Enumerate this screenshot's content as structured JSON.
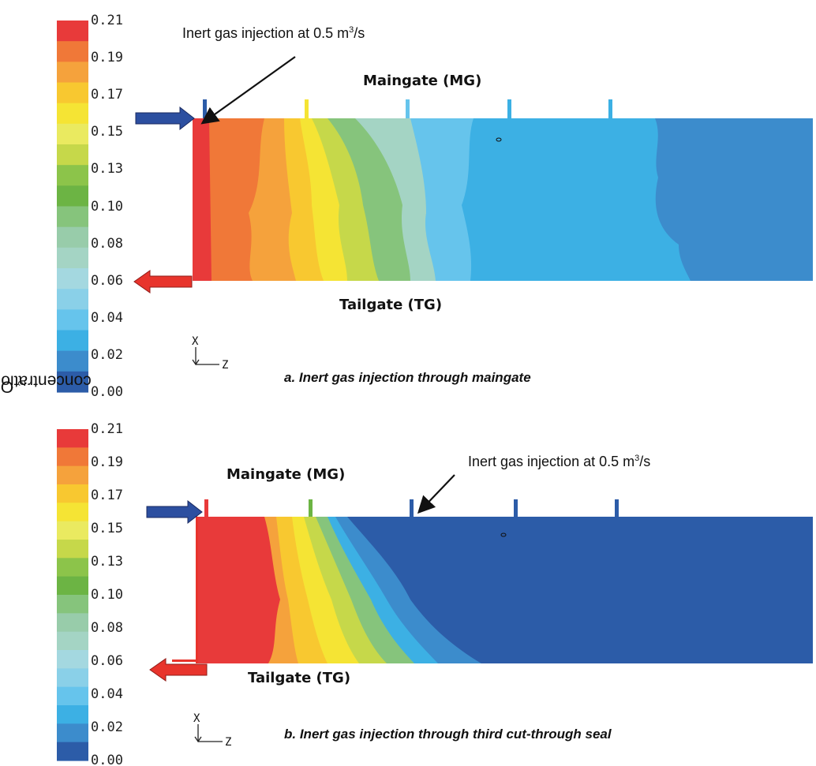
{
  "y_axis_label": {
    "prefix": "O",
    "subscript": "2",
    "suffix": " concentration level (%)"
  },
  "legend": {
    "labels": [
      "0.21",
      "0.19",
      "0.17",
      "0.15",
      "0.13",
      "0.10",
      "0.08",
      "0.06",
      "0.04",
      "0.02",
      "0.00"
    ],
    "colors": [
      "#e83a3a",
      "#f07838",
      "#f5a23c",
      "#f8c830",
      "#f5e434",
      "#eaea60",
      "#c6d84a",
      "#8cc44a",
      "#6cb444",
      "#86c47c",
      "#98ccaa",
      "#a4d4c4",
      "#a4d8e0",
      "#8ad0e8",
      "#66c4ec",
      "#3cb0e4",
      "#3c8ccc",
      "#2c5ca8"
    ]
  },
  "panel_a": {
    "maingate_label": "Maingate (MG)",
    "tailgate_label": "Tailgate (TG)",
    "injection_label": {
      "text": "Inert gas injection at 0.5 m",
      "sup": "3",
      "tail": "/s"
    },
    "caption": "a. Inert gas injection through maingate",
    "axis_x": "X",
    "axis_z": "Z"
  },
  "panel_b": {
    "maingate_label": "Maingate (MG)",
    "tailgate_label": "Tailgate (TG)",
    "injection_label": {
      "text": "Inert gas injection at 0.5 m",
      "sup": "3",
      "tail": "/s"
    },
    "caption": "b. Inert gas injection through third cut-through seal",
    "axis_x": "X",
    "axis_z": "Z"
  }
}
